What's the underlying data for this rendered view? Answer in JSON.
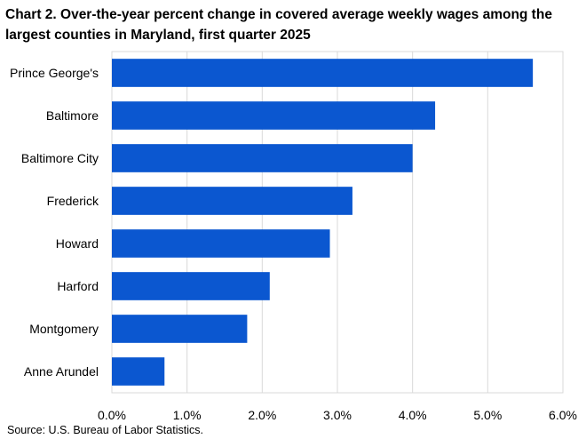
{
  "chart_data": {
    "type": "bar",
    "orientation": "horizontal",
    "title": "Chart 2. Over-the-year percent change in covered average weekly wages among the largest counties in Maryland, first quarter 2025",
    "categories": [
      "Prince George's",
      "Baltimore",
      "Baltimore City",
      "Frederick",
      "Howard",
      "Harford",
      "Montgomery",
      "Anne Arundel"
    ],
    "values": [
      5.6,
      4.3,
      4.0,
      3.2,
      2.9,
      2.1,
      1.8,
      0.7
    ],
    "xlim": [
      0,
      6
    ],
    "xticks": [
      0,
      1,
      2,
      3,
      4,
      5,
      6
    ],
    "xtick_labels": [
      "0.0%",
      "1.0%",
      "2.0%",
      "3.0%",
      "4.0%",
      "5.0%",
      "6.0%"
    ],
    "xlabel": "",
    "ylabel": "",
    "grid": true,
    "bar_color": "#0b57d0",
    "source": "Source: U.S. Bureau of Labor Statistics."
  }
}
